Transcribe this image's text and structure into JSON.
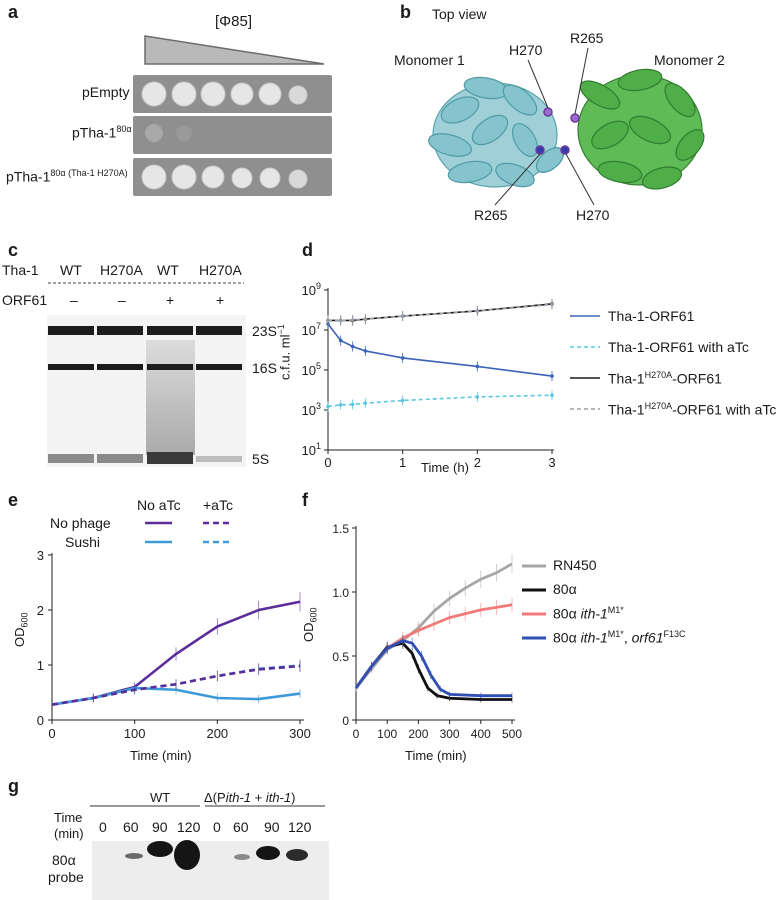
{
  "panel_a": {
    "letter": "a",
    "triangle_label": "[Φ85]",
    "rows": [
      {
        "label": "pEmpty"
      },
      {
        "label": "pTha-1",
        "sup": "80α"
      },
      {
        "label": "pTha-1",
        "sup": "80α (Tha-1 H270A)"
      }
    ]
  },
  "panel_b": {
    "letter": "b",
    "title": "Top view",
    "monomer1": "Monomer 1",
    "monomer2": "Monomer 2",
    "h270_top": "H270",
    "r265_top": "R265",
    "r265_bottom": "R265",
    "h270_bottom": "H270"
  },
  "panel_c": {
    "letter": "c",
    "row1_label": "Tha-1",
    "row2_label": "ORF61",
    "lanes": [
      {
        "tha": "WT",
        "orf": "–"
      },
      {
        "tha": "H270A",
        "orf": "–"
      },
      {
        "tha": "WT",
        "orf": "+"
      },
      {
        "tha": "H270A",
        "orf": "+"
      }
    ],
    "bands": [
      "23S",
      "16S",
      "5S"
    ]
  },
  "panel_d": {
    "letter": "d",
    "colors": {
      "blue": "#3a63b8",
      "cyan": "#5bc7e0",
      "black": "#1a1a1a",
      "gray": "#9aa0a8"
    },
    "legend": [
      {
        "text": "Tha-1-ORF61"
      },
      {
        "text": "Tha-1-ORF61 with aTc"
      },
      {
        "pre": "Tha-1",
        "sup": "H270A",
        "post": "-ORF61"
      },
      {
        "pre": "Tha-1",
        "sup": "H270A",
        "post": "-ORF61 with aTc"
      }
    ],
    "chart_data": {
      "type": "line",
      "xlabel": "Time (h)",
      "ylabel": "c.f.u. ml",
      "ylabel_sup": "−1",
      "xlim": [
        0,
        3
      ],
      "ylim_log10": [
        1,
        9
      ],
      "x_ticks": [
        "0",
        "1",
        "2",
        "3"
      ],
      "y_ticks": [
        {
          "base": "10",
          "exp": "1"
        },
        {
          "base": "10",
          "exp": "3"
        },
        {
          "base": "10",
          "exp": "5"
        },
        {
          "base": "10",
          "exp": "7"
        },
        {
          "base": "10",
          "exp": "9"
        }
      ],
      "series": [
        {
          "name": "Tha-1-ORF61",
          "x": [
            0,
            0.17,
            0.33,
            0.5,
            1,
            2,
            3
          ],
          "y": [
            20000000.0,
            3000000.0,
            1500000.0,
            900000.0,
            400000.0,
            150000.0,
            50000.0
          ]
        },
        {
          "name": "Tha-1-ORF61 with aTc",
          "x": [
            0,
            0.17,
            0.33,
            0.5,
            1,
            2,
            3
          ],
          "y": [
            1500,
            1800,
            1900,
            2200,
            3000,
            4500,
            5500
          ]
        },
        {
          "name": "Tha-1H270A-ORF61",
          "x": [
            0,
            0.17,
            0.33,
            0.5,
            1,
            2,
            3
          ],
          "y": [
            30000000.0,
            30000000.0,
            30000000.0,
            35000000.0,
            50000000.0,
            90000000.0,
            200000000.0
          ]
        },
        {
          "name": "Tha-1H270A-ORF61 with aTc",
          "x": [
            0,
            0.17,
            0.33,
            0.5,
            1,
            2,
            3
          ],
          "y": [
            30000000.0,
            30000000.0,
            32000000.0,
            35000000.0,
            50000000.0,
            90000000.0,
            190000000.0
          ]
        }
      ]
    }
  },
  "panel_e": {
    "letter": "e",
    "col1": "No aTc",
    "col2": "+aTc",
    "row1": "No phage",
    "row2": "Sushi",
    "colors": {
      "purple": "#5b2d9b",
      "blue": "#3d9ad8"
    },
    "chart_data": {
      "type": "line",
      "xlabel": "Time (min)",
      "ylabel": "OD",
      "ylabel_sub": "600",
      "xlim": [
        0,
        300
      ],
      "ylim": [
        0,
        3
      ],
      "x_ticks": [
        "0",
        "100",
        "200",
        "300"
      ],
      "y_ticks": [
        "0",
        "1",
        "2",
        "3"
      ],
      "series": [
        {
          "name": "No phage No aTc",
          "x": [
            0,
            50,
            100,
            150,
            200,
            250,
            300
          ],
          "y": [
            0.28,
            0.4,
            0.6,
            1.2,
            1.7,
            2.0,
            2.15
          ]
        },
        {
          "name": "No phage +aTc",
          "x": [
            0,
            50,
            100,
            150,
            200,
            250,
            300
          ],
          "y": [
            0.28,
            0.4,
            0.55,
            0.65,
            0.8,
            0.92,
            0.98
          ]
        },
        {
          "name": "Sushi No aTc",
          "x": [
            0,
            50,
            100,
            150,
            200,
            250,
            300
          ],
          "y": [
            0.28,
            0.4,
            0.58,
            0.55,
            0.4,
            0.38,
            0.48
          ]
        },
        {
          "name": "Sushi +aTc",
          "x": [
            0,
            50,
            100,
            150,
            200,
            250,
            300
          ],
          "y": [
            0.28,
            0.4,
            0.55,
            0.65,
            0.8,
            0.93,
            0.99
          ]
        }
      ]
    }
  },
  "panel_f": {
    "letter": "f",
    "colors": {
      "gray": "#a6a6a6",
      "black": "#111111",
      "pink": "#f07a7a",
      "blue": "#2f4fb5"
    },
    "legend": [
      {
        "parts": [
          {
            "t": "RN450",
            "k": "n"
          }
        ]
      },
      {
        "parts": [
          {
            "t": "80α",
            "k": "n"
          }
        ]
      },
      {
        "parts": [
          {
            "t": "80α ",
            "k": "n"
          },
          {
            "t": "ith-1",
            "k": "i"
          },
          {
            "t": "M1*",
            "k": "s"
          }
        ]
      },
      {
        "parts": [
          {
            "t": "80α ",
            "k": "n"
          },
          {
            "t": "ith-1",
            "k": "i"
          },
          {
            "t": "M1*",
            "k": "s"
          },
          {
            "t": ", ",
            "k": "n"
          },
          {
            "t": "orf61",
            "k": "i"
          },
          {
            "t": "F13C",
            "k": "s"
          }
        ]
      }
    ],
    "chart_data": {
      "type": "line",
      "xlabel": "Time (min)",
      "ylabel": "OD",
      "ylabel_sub": "600",
      "xlim": [
        0,
        500
      ],
      "ylim": [
        0,
        1.5
      ],
      "x_ticks": [
        "0",
        "100",
        "200",
        "300",
        "400",
        "500"
      ],
      "y_ticks": [
        "0",
        "0.5",
        "1.0",
        "1.5"
      ],
      "series": [
        {
          "name": "RN450",
          "x": [
            0,
            50,
            100,
            150,
            200,
            250,
            300,
            350,
            400,
            450,
            500
          ],
          "y": [
            0.25,
            0.4,
            0.55,
            0.62,
            0.72,
            0.85,
            0.95,
            1.03,
            1.1,
            1.15,
            1.22
          ]
        },
        {
          "name": "80α",
          "x": [
            0,
            50,
            100,
            150,
            180,
            200,
            230,
            260,
            300,
            400,
            500
          ],
          "y": [
            0.25,
            0.42,
            0.57,
            0.6,
            0.52,
            0.4,
            0.25,
            0.19,
            0.17,
            0.16,
            0.16
          ]
        },
        {
          "name": "80α ith-1M1*",
          "x": [
            0,
            50,
            100,
            150,
            200,
            250,
            300,
            350,
            400,
            450,
            500
          ],
          "y": [
            0.25,
            0.42,
            0.56,
            0.64,
            0.7,
            0.75,
            0.8,
            0.83,
            0.86,
            0.88,
            0.9
          ]
        },
        {
          "name": "80α ith-1M1*, orf61F13C",
          "x": [
            0,
            50,
            100,
            150,
            180,
            210,
            240,
            270,
            300,
            400,
            500
          ],
          "y": [
            0.25,
            0.42,
            0.56,
            0.62,
            0.6,
            0.5,
            0.35,
            0.24,
            0.2,
            0.19,
            0.19
          ]
        }
      ]
    }
  },
  "panel_g": {
    "letter": "g",
    "group1": "WT",
    "group2_parts": [
      {
        "t": "Δ(P",
        "k": "n"
      },
      {
        "t": "ith-1",
        "k": "i"
      },
      {
        "t": " + ",
        "k": "n"
      },
      {
        "t": "ith-1",
        "k": "i"
      },
      {
        "t": ")",
        "k": "n"
      }
    ],
    "time_label": "Time",
    "time_unit": "(min)",
    "times": [
      "0",
      "60",
      "90",
      "120",
      "0",
      "60",
      "90",
      "120"
    ],
    "probe_label_1": "80α",
    "probe_label_2": "probe"
  }
}
